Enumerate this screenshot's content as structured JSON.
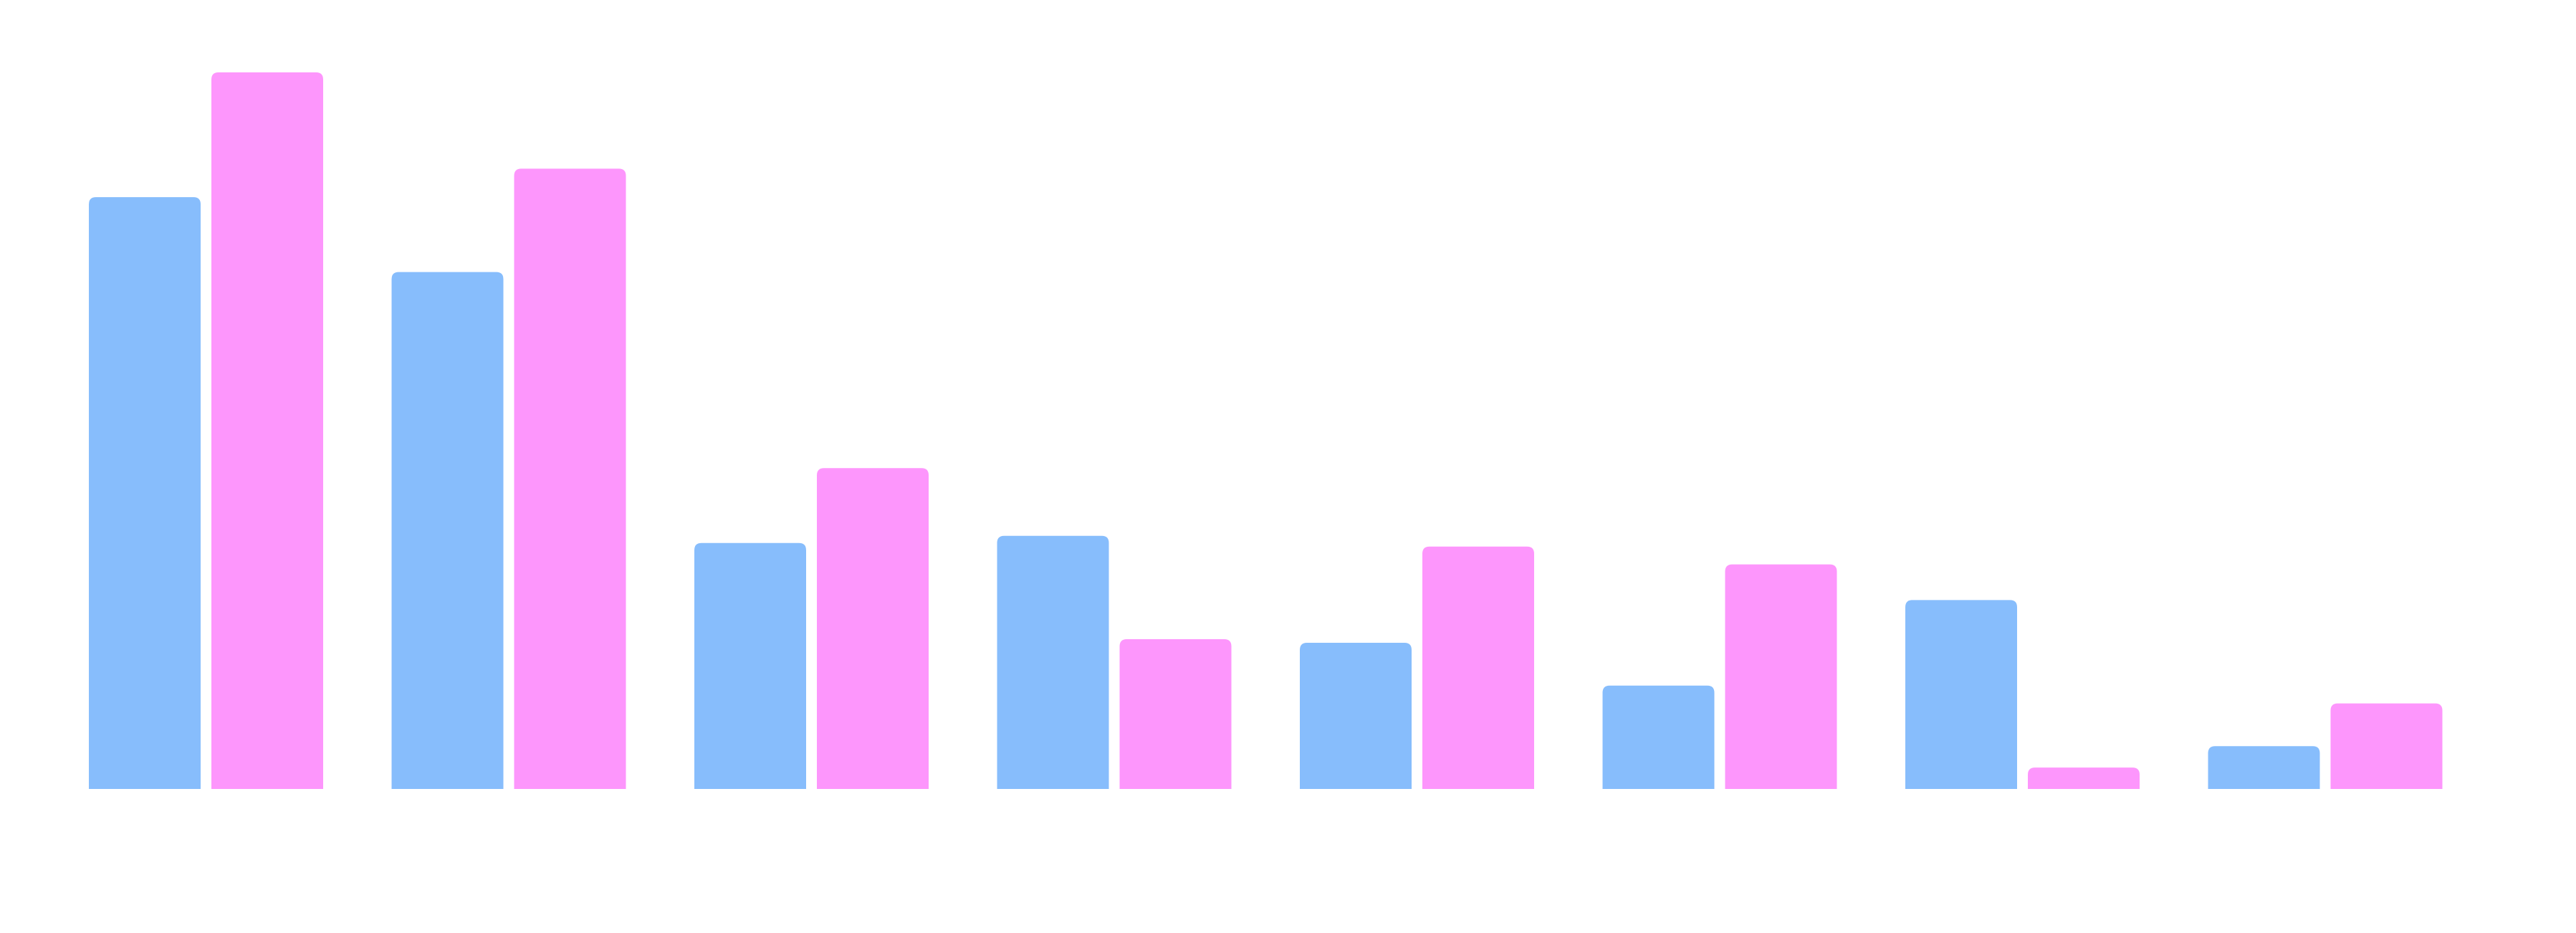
{
  "chart_data": {
    "type": "bar",
    "categories": [
      "",
      "",
      "",
      "",
      "",
      "",
      "",
      ""
    ],
    "series": [
      {
        "values": [
          83,
          72.5,
          34.5,
          35.5,
          20.5,
          14.5,
          26.5,
          6
        ]
      },
      {
        "values": [
          100.5,
          87,
          45,
          21,
          34,
          31.5,
          3,
          12
        ]
      }
    ],
    "colors": [
      "#87bdfc",
      "#fd96fc"
    ],
    "ylim": [
      0,
      100.5
    ],
    "grid": false,
    "legend": "none",
    "title": "",
    "xlabel": "",
    "ylabel": ""
  }
}
